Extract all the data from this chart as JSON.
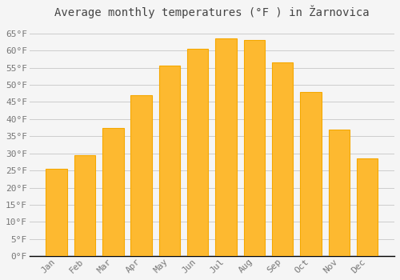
{
  "title": "Average monthly temperatures (°F ) in Žarnovica",
  "months": [
    "Jan",
    "Feb",
    "Mar",
    "Apr",
    "May",
    "Jun",
    "Jul",
    "Aug",
    "Sep",
    "Oct",
    "Nov",
    "Dec"
  ],
  "values": [
    25.5,
    29.5,
    37.5,
    47.0,
    55.5,
    60.5,
    63.5,
    63.0,
    56.5,
    48.0,
    37.0,
    28.5
  ],
  "bar_color": "#FDB930",
  "bar_edge_color": "#F5A800",
  "background_color": "#f5f5f5",
  "grid_color": "#cccccc",
  "ylim": [
    0,
    68
  ],
  "yticks": [
    0,
    5,
    10,
    15,
    20,
    25,
    30,
    35,
    40,
    45,
    50,
    55,
    60,
    65
  ],
  "title_fontsize": 10,
  "tick_fontsize": 8,
  "title_color": "#444444",
  "tick_color": "#777777",
  "axis_color": "#000000"
}
